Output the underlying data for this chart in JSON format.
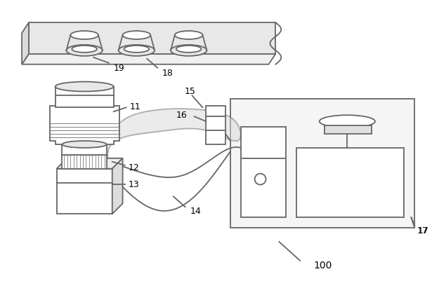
{
  "bg_color": "#ffffff",
  "line_color": "#666666",
  "line_width": 1.3,
  "figsize": [
    6.15,
    4.02
  ],
  "dpi": 100
}
